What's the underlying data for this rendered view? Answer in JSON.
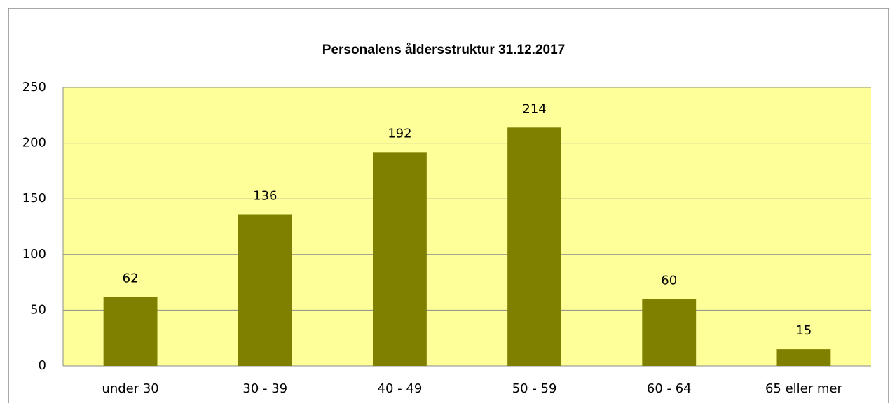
{
  "chart_data": {
    "type": "bar",
    "title": "Personalens åldersstruktur 31.12.2017",
    "categories": [
      "under 30",
      "30 - 39",
      "40 - 49",
      "50 - 59",
      "60 - 64",
      "65 eller mer"
    ],
    "values": [
      62,
      136,
      192,
      214,
      60,
      15
    ],
    "color": "#808000",
    "plot_background": "#ffff99",
    "ylim": [
      0,
      250
    ],
    "yticks": [
      0,
      50,
      100,
      150,
      200,
      250
    ],
    "grid": true
  }
}
